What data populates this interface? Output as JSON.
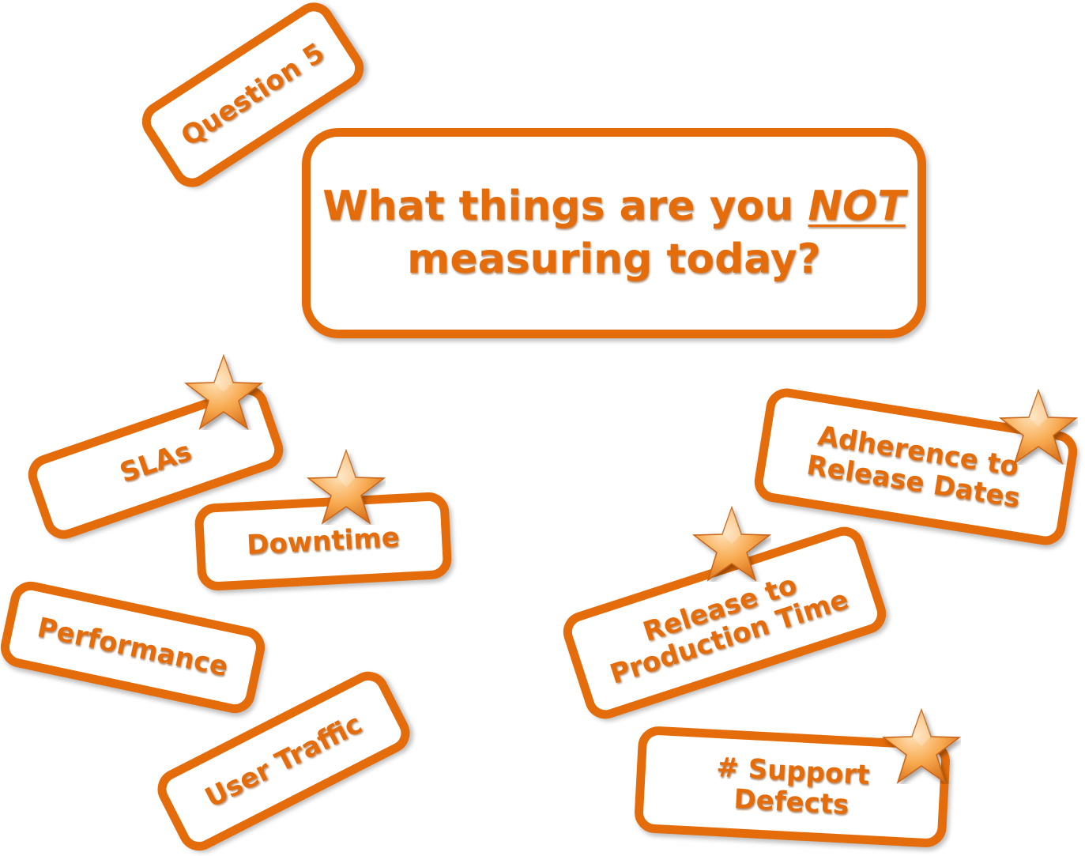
{
  "question_tag": "Question 5",
  "question": {
    "line1_prefix": "What things are you",
    "line1_emphasis": "NOT",
    "line2": "measuring today?"
  },
  "answers": {
    "slas": "SLAs",
    "downtime": "Downtime",
    "performance": "Performance",
    "user_traffic": "User Traffic",
    "adherence_line1": "Adherence to",
    "adherence_line2": "Release Dates",
    "release_line1": "Release to",
    "release_line2": "Production Time",
    "support_line1": "# Support",
    "support_line2": "Defects"
  },
  "starred_answers": [
    "SLAs",
    "Downtime",
    "Adherence to Release Dates",
    "Release to Production Time",
    "# Support Defects"
  ],
  "colors": {
    "accent": "#e46c0a",
    "star_light": "#ffd9a6",
    "star_dark": "#e07a1e",
    "background": "#ffffff"
  },
  "icons": {
    "star": "star-icon"
  }
}
